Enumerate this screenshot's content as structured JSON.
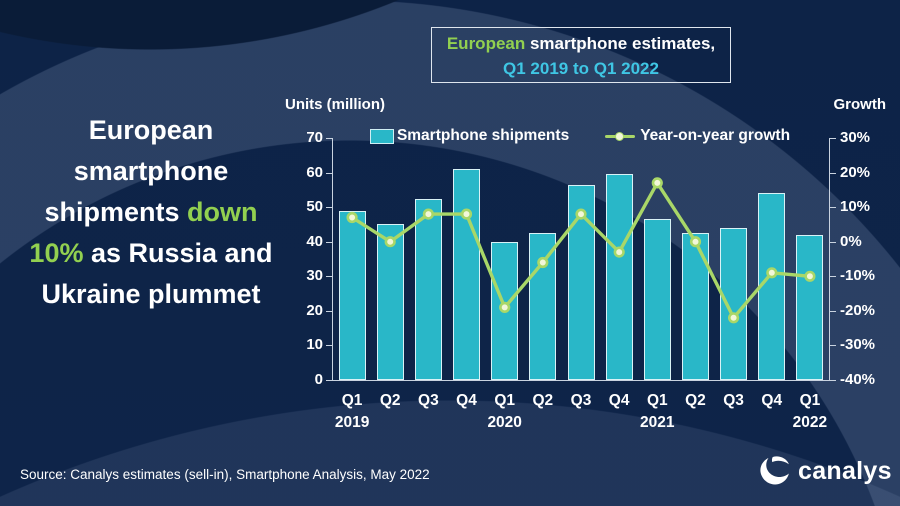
{
  "title_box": {
    "line1_segments": [
      {
        "text": "European",
        "color": "green"
      },
      {
        "text": " smartphone estimates,",
        "color": "white"
      }
    ],
    "line2": "Q1 2019 to Q1 2022"
  },
  "headline": {
    "segments": [
      {
        "text": "European smartphone shipments ",
        "color": "white"
      },
      {
        "text": "down 10%",
        "color": "green"
      },
      {
        "text": " as Russia and Ukraine plummet",
        "color": "white"
      }
    ]
  },
  "source": "Source: Canalys estimates (sell-in), Smartphone Analysis, May 2022",
  "logo_text": "canalys",
  "colors": {
    "background": "#0e2449",
    "bar_fill": "#29b7c8",
    "bar_border": "#d9f2f6",
    "line": "#a9d768",
    "dot_fill": "#f2f7d9",
    "accent_green": "#92d050",
    "accent_cyan": "#3fc6e4",
    "axis": "#c9d3e0",
    "text": "#ffffff"
  },
  "chart_data": {
    "type": "combo",
    "title": "European smartphone estimates, Q1 2019 to Q1 2022",
    "categories": [
      "Q1 2019",
      "Q2 2019",
      "Q3 2019",
      "Q4 2019",
      "Q1 2020",
      "Q2 2020",
      "Q3 2020",
      "Q4 2020",
      "Q1 2021",
      "Q2 2021",
      "Q3 2021",
      "Q4 2021",
      "Q1 2022"
    ],
    "series": [
      {
        "name": "Smartphone shipments",
        "type": "bar",
        "axis": "left",
        "unit": "million units",
        "values": [
          49,
          45,
          52.5,
          61,
          40,
          42.5,
          56.5,
          59.5,
          46.5,
          42.5,
          44,
          54,
          42
        ]
      },
      {
        "name": "Year-on-year growth",
        "type": "line",
        "axis": "right",
        "unit": "%",
        "values": [
          7,
          0,
          8,
          8,
          -19,
          -6,
          8,
          -3,
          17,
          0,
          -22,
          -9,
          -10
        ]
      }
    ],
    "left_axis": {
      "label": "Units (million)",
      "min": 0,
      "max": 70,
      "step": 10
    },
    "right_axis": {
      "label": "Growth",
      "min": -40,
      "max": 30,
      "step": 10,
      "suffix": "%"
    },
    "x_axis": {
      "year_rows": {
        "0": "2019",
        "4": "2020",
        "8": "2021",
        "12": "2022"
      }
    },
    "legend_position": "top",
    "grid": false
  }
}
